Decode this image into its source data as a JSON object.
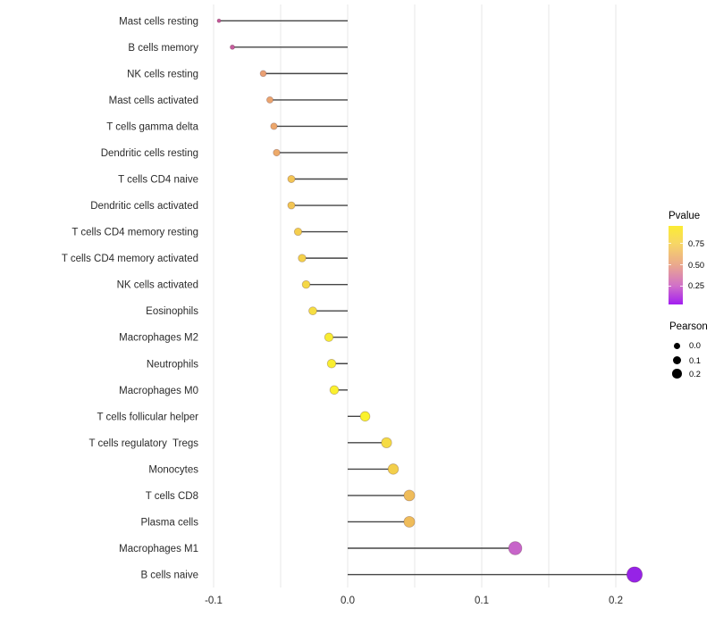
{
  "figure": {
    "background": "#ffffff",
    "description": "Horizontal lollipop chart of immune cell fractions: Pearson correlation on x-axis, dot color = Pvalue, dot size = Pearson"
  },
  "chart_data": {
    "type": "scatter",
    "subtype": "lollipop-horizontal",
    "title": "",
    "xlabel": "",
    "ylabel": "",
    "x_axis": {
      "tick_labels": [
        "-0.1",
        "0.0",
        "0.1",
        "0.2"
      ],
      "tick_values": [
        -0.1,
        0.0,
        0.1,
        0.2
      ],
      "minor_grid_step": 0.05,
      "gridline_values": [
        -0.1,
        -0.05,
        0.0,
        0.05,
        0.1,
        0.15,
        0.2
      ],
      "range": [
        -0.11,
        0.228
      ],
      "grid": "vertical-only"
    },
    "points": [
      {
        "label": "Mast cells resting",
        "pearson": -0.096,
        "pvalue_approx": 0.33,
        "color": "#C4579A"
      },
      {
        "label": "B cells memory",
        "pearson": -0.086,
        "pvalue_approx": 0.35,
        "color": "#C75C9E"
      },
      {
        "label": "NK cells resting",
        "pearson": -0.063,
        "pvalue_approx": 0.55,
        "color": "#EAA073"
      },
      {
        "label": "Mast cells activated",
        "pearson": -0.058,
        "pvalue_approx": 0.57,
        "color": "#EBA46E"
      },
      {
        "label": "T cells gamma delta",
        "pearson": -0.055,
        "pvalue_approx": 0.58,
        "color": "#ECA76C"
      },
      {
        "label": "Dendritic cells resting",
        "pearson": -0.053,
        "pvalue_approx": 0.6,
        "color": "#EDAA6A"
      },
      {
        "label": "T cells CD4 naive",
        "pearson": -0.042,
        "pvalue_approx": 0.67,
        "color": "#F2C455"
      },
      {
        "label": "Dendritic cells activated",
        "pearson": -0.042,
        "pvalue_approx": 0.68,
        "color": "#F2C553"
      },
      {
        "label": "T cells CD4 memory resting",
        "pearson": -0.037,
        "pvalue_approx": 0.71,
        "color": "#F4CE4E"
      },
      {
        "label": "T cells CD4 memory activated",
        "pearson": -0.034,
        "pvalue_approx": 0.72,
        "color": "#F4D14B"
      },
      {
        "label": "NK cells activated",
        "pearson": -0.031,
        "pvalue_approx": 0.74,
        "color": "#F5D847"
      },
      {
        "label": "Eosinophils",
        "pearson": -0.026,
        "pvalue_approx": 0.77,
        "color": "#F6DE43"
      },
      {
        "label": "Macrophages M2",
        "pearson": -0.014,
        "pvalue_approx": 0.83,
        "color": "#F8EC32"
      },
      {
        "label": "Neutrophils",
        "pearson": -0.012,
        "pvalue_approx": 0.84,
        "color": "#F9EE30"
      },
      {
        "label": "Macrophages M0",
        "pearson": -0.01,
        "pvalue_approx": 0.85,
        "color": "#FAF02E"
      },
      {
        "label": "T cells follicular helper",
        "pearson": 0.013,
        "pvalue_approx": 0.87,
        "color": "#FAF22C"
      },
      {
        "label": "T cells regulatory  Tregs",
        "pearson": 0.029,
        "pvalue_approx": 0.75,
        "color": "#F5DB45"
      },
      {
        "label": "Monocytes",
        "pearson": 0.034,
        "pvalue_approx": 0.71,
        "color": "#F3CF4B"
      },
      {
        "label": "T cells CD8",
        "pearson": 0.046,
        "pvalue_approx": 0.64,
        "color": "#EFBC5A"
      },
      {
        "label": "Plasma cells",
        "pearson": 0.046,
        "pvalue_approx": 0.64,
        "color": "#EFBC5A"
      },
      {
        "label": "Macrophages M1",
        "pearson": 0.125,
        "pvalue_approx": 0.22,
        "color": "#C765C9"
      },
      {
        "label": "B cells naive",
        "pearson": 0.214,
        "pvalue_approx": 0.04,
        "color": "#9623E6"
      }
    ],
    "legends": {
      "pvalue": {
        "title": "Pvalue",
        "tick_labels": [
          "0.75",
          "0.50",
          "0.25"
        ],
        "tick_values": [
          0.75,
          0.5,
          0.25
        ],
        "gradient_stops": [
          "#FBEC33",
          "#F7D765",
          "#EBAA8C",
          "#D171C8",
          "#A31EF0"
        ],
        "position": "right"
      },
      "pearson": {
        "title": "Pearson",
        "items": [
          {
            "label": "0.0",
            "value": 0.0
          },
          {
            "label": "0.1",
            "value": 0.1
          },
          {
            "label": "0.2",
            "value": 0.2
          }
        ],
        "position": "right"
      }
    },
    "style": {
      "stem_color": "#454545",
      "gridline_color": "#E7E7E7",
      "axis_text_color": "#2b2b2b"
    }
  }
}
